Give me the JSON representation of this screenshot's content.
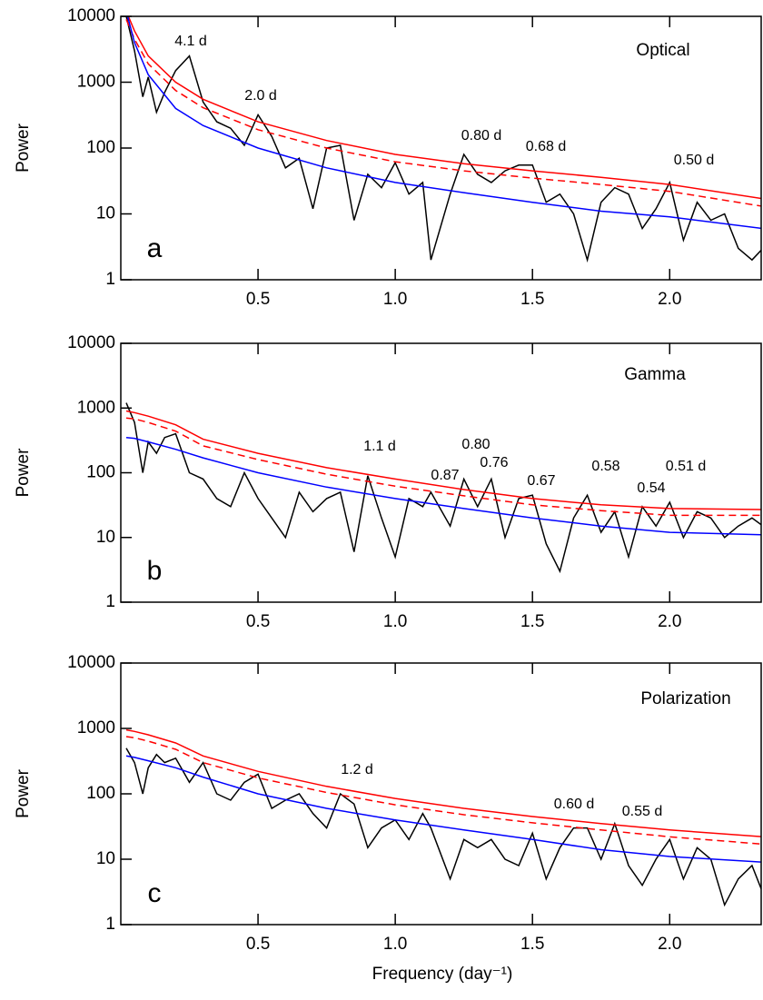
{
  "chart_data": [
    {
      "type": "line",
      "title": "Optical",
      "panel_label": "a",
      "ylabel": "Power",
      "log_y": true,
      "xlim": [
        0,
        2.34
      ],
      "ylim": [
        1,
        10000
      ],
      "xticks": [
        0.5,
        {
          "value": 1,
          "label": "1.0"
        },
        1.5,
        {
          "value": 2,
          "label": "2.0"
        }
      ],
      "yticks": [
        1,
        10,
        100,
        1000,
        10000
      ],
      "x": [
        0.02,
        0.05,
        0.08,
        0.1,
        0.13,
        0.16,
        0.2,
        0.25,
        0.3,
        0.35,
        0.4,
        0.45,
        0.5,
        0.55,
        0.6,
        0.65,
        0.7,
        0.75,
        0.8,
        0.85,
        0.9,
        0.95,
        1.0,
        1.05,
        1.1,
        1.13,
        1.2,
        1.25,
        1.3,
        1.35,
        1.4,
        1.45,
        1.5,
        1.55,
        1.6,
        1.65,
        1.7,
        1.75,
        1.8,
        1.85,
        1.9,
        1.95,
        2.0,
        2.05,
        2.1,
        2.15,
        2.2,
        2.25,
        2.3,
        2.34
      ],
      "series": [
        {
          "color": "#000000",
          "values": [
            10000,
            3000,
            600,
            1200,
            350,
            700,
            1500,
            2500,
            500,
            250,
            200,
            110,
            320,
            150,
            50,
            70,
            12,
            100,
            110,
            8,
            40,
            25,
            60,
            20,
            30,
            2,
            20,
            80,
            40,
            30,
            45,
            55,
            55,
            15,
            20,
            10,
            2,
            15,
            25,
            20,
            6,
            12,
            30,
            4,
            15,
            8,
            10,
            3,
            2,
            3
          ]
        },
        {
          "color": "#ff0000",
          "x": [
            0.02,
            0.05,
            0.1,
            0.2,
            0.3,
            0.5,
            0.75,
            1.0,
            1.25,
            1.5,
            1.75,
            2.0,
            2.34
          ],
          "values": [
            12000,
            6000,
            2500,
            1000,
            550,
            250,
            130,
            80,
            58,
            45,
            36,
            28,
            17
          ]
        },
        {
          "color": "#ff0000",
          "dashed": true,
          "x": [
            0.02,
            0.05,
            0.1,
            0.2,
            0.3,
            0.5,
            0.75,
            1.0,
            1.25,
            1.5,
            1.75,
            2.0,
            2.34
          ],
          "values": [
            9000,
            4500,
            1900,
            750,
            410,
            190,
            100,
            62,
            45,
            35,
            28,
            22,
            13
          ]
        },
        {
          "color": "#0000ff",
          "x": [
            0.02,
            0.05,
            0.1,
            0.2,
            0.3,
            0.5,
            0.75,
            1.0,
            1.25,
            1.5,
            1.75,
            2.0,
            2.34
          ],
          "values": [
            12000,
            4000,
            1300,
            400,
            220,
            100,
            50,
            30,
            21,
            15,
            11,
            9,
            6
          ]
        }
      ],
      "annotations": [
        "4.1 d",
        "2.0 d",
        "0.80 d",
        "0.68 d",
        "0.50 d"
      ]
    },
    {
      "type": "line",
      "title": "Gamma",
      "panel_label": "b",
      "ylabel": "Power",
      "log_y": true,
      "xlim": [
        0,
        2.34
      ],
      "ylim": [
        1,
        10000
      ],
      "xticks": [
        0.5,
        {
          "value": 1,
          "label": "1.0"
        },
        1.5,
        {
          "value": 2,
          "label": "2.0"
        }
      ],
      "yticks": [
        1,
        10,
        100,
        1000,
        10000
      ],
      "x": [
        0.02,
        0.05,
        0.08,
        0.1,
        0.13,
        0.16,
        0.2,
        0.25,
        0.3,
        0.35,
        0.4,
        0.45,
        0.5,
        0.55,
        0.6,
        0.65,
        0.7,
        0.75,
        0.8,
        0.85,
        0.9,
        0.95,
        1.0,
        1.05,
        1.1,
        1.13,
        1.2,
        1.25,
        1.3,
        1.35,
        1.4,
        1.45,
        1.5,
        1.55,
        1.6,
        1.65,
        1.7,
        1.75,
        1.8,
        1.85,
        1.9,
        1.95,
        2.0,
        2.05,
        2.1,
        2.15,
        2.2,
        2.25,
        2.3,
        2.34
      ],
      "series": [
        {
          "color": "#000000",
          "values": [
            1200,
            600,
            100,
            300,
            200,
            350,
            400,
            100,
            80,
            40,
            30,
            100,
            40,
            20,
            10,
            50,
            25,
            40,
            50,
            6,
            90,
            20,
            5,
            40,
            30,
            50,
            15,
            80,
            30,
            80,
            10,
            40,
            45,
            8,
            3,
            20,
            45,
            12,
            25,
            5,
            30,
            15,
            35,
            10,
            25,
            20,
            10,
            15,
            20,
            15
          ]
        },
        {
          "color": "#ff0000",
          "x": [
            0.02,
            0.05,
            0.1,
            0.2,
            0.3,
            0.5,
            0.75,
            1.0,
            1.25,
            1.5,
            1.75,
            2.0,
            2.34
          ],
          "values": [
            900,
            850,
            750,
            550,
            330,
            200,
            120,
            80,
            55,
            40,
            32,
            28,
            27
          ]
        },
        {
          "color": "#ff0000",
          "dashed": true,
          "x": [
            0.02,
            0.05,
            0.1,
            0.2,
            0.3,
            0.5,
            0.75,
            1.0,
            1.25,
            1.5,
            1.75,
            2.0,
            2.34
          ],
          "values": [
            700,
            680,
            600,
            440,
            260,
            160,
            95,
            62,
            44,
            32,
            26,
            22,
            22
          ]
        },
        {
          "color": "#0000ff",
          "x": [
            0.02,
            0.05,
            0.1,
            0.2,
            0.3,
            0.5,
            0.75,
            1.0,
            1.25,
            1.5,
            1.75,
            2.0,
            2.34
          ],
          "values": [
            350,
            340,
            300,
            230,
            170,
            100,
            60,
            40,
            28,
            20,
            15,
            12,
            11
          ]
        }
      ],
      "annotations": [
        "1.1 d",
        "0.80",
        "0.76",
        "0.87",
        "0.67",
        "0.58",
        "0.54",
        "0.51 d"
      ]
    },
    {
      "type": "line",
      "title": "Polarization",
      "panel_label": "c",
      "ylabel": "Power",
      "xlabel": "Frequency (day⁻¹)",
      "log_y": true,
      "xlim": [
        0,
        2.34
      ],
      "ylim": [
        1,
        10000
      ],
      "xticks": [
        0.5,
        {
          "value": 1,
          "label": "1.0"
        },
        1.5,
        {
          "value": 2,
          "label": "2.0"
        }
      ],
      "yticks": [
        1,
        10,
        100,
        1000,
        10000
      ],
      "x": [
        0.02,
        0.05,
        0.08,
        0.1,
        0.13,
        0.16,
        0.2,
        0.25,
        0.3,
        0.35,
        0.4,
        0.45,
        0.5,
        0.55,
        0.6,
        0.65,
        0.7,
        0.75,
        0.8,
        0.85,
        0.9,
        0.95,
        1.0,
        1.05,
        1.1,
        1.13,
        1.2,
        1.25,
        1.3,
        1.35,
        1.4,
        1.45,
        1.5,
        1.55,
        1.6,
        1.65,
        1.7,
        1.75,
        1.8,
        1.85,
        1.9,
        1.95,
        2.0,
        2.05,
        2.1,
        2.15,
        2.2,
        2.25,
        2.3,
        2.34
      ],
      "series": [
        {
          "color": "#000000",
          "values": [
            500,
            300,
            100,
            250,
            400,
            300,
            350,
            150,
            300,
            100,
            80,
            150,
            200,
            60,
            80,
            100,
            50,
            30,
            100,
            70,
            15,
            30,
            40,
            20,
            50,
            30,
            5,
            20,
            15,
            20,
            10,
            8,
            25,
            5,
            15,
            30,
            30,
            10,
            35,
            8,
            4,
            10,
            20,
            5,
            15,
            10,
            2,
            5,
            8,
            3
          ]
        },
        {
          "color": "#ff0000",
          "x": [
            0.02,
            0.05,
            0.1,
            0.2,
            0.3,
            0.5,
            0.75,
            1.0,
            1.25,
            1.5,
            1.75,
            2.0,
            2.34
          ],
          "values": [
            950,
            900,
            800,
            600,
            380,
            220,
            130,
            85,
            60,
            45,
            35,
            28,
            22
          ]
        },
        {
          "color": "#ff0000",
          "dashed": true,
          "x": [
            0.02,
            0.05,
            0.1,
            0.2,
            0.3,
            0.5,
            0.75,
            1.0,
            1.25,
            1.5,
            1.75,
            2.0,
            2.34
          ],
          "values": [
            750,
            720,
            640,
            480,
            300,
            175,
            105,
            68,
            48,
            36,
            28,
            22,
            17
          ]
        },
        {
          "color": "#0000ff",
          "x": [
            0.02,
            0.05,
            0.1,
            0.2,
            0.3,
            0.5,
            0.75,
            1.0,
            1.25,
            1.5,
            1.75,
            2.0,
            2.34
          ],
          "values": [
            380,
            360,
            320,
            250,
            180,
            100,
            60,
            40,
            28,
            20,
            14,
            11,
            9
          ]
        }
      ],
      "annotations": [
        "1.2 d",
        "0.60 d",
        "0.55 d"
      ]
    }
  ]
}
